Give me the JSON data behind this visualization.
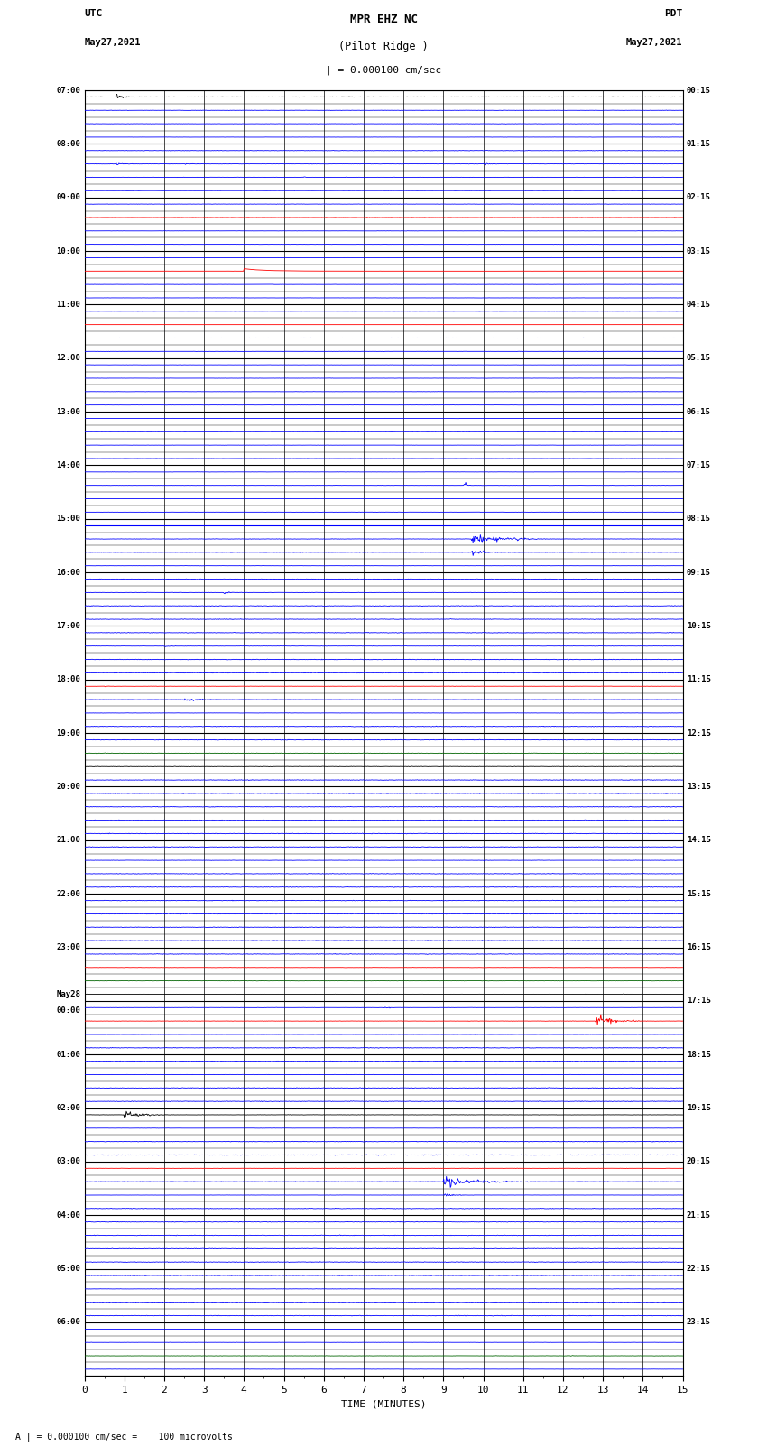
{
  "title_line1": "MPR EHZ NC",
  "title_line2": "(Pilot Ridge )",
  "scale_label": "| = 0.000100 cm/sec",
  "left_label_top": "UTC",
  "left_label_date": "May27,2021",
  "right_label_top": "PDT",
  "right_label_date": "May27,2021",
  "xlabel": "TIME (MINUTES)",
  "footer": "A | = 0.000100 cm/sec =    100 microvolts",
  "x_min": 0,
  "x_max": 15,
  "x_ticks": [
    0,
    1,
    2,
    3,
    4,
    5,
    6,
    7,
    8,
    9,
    10,
    11,
    12,
    13,
    14,
    15
  ],
  "bg_color": "#ffffff",
  "grid_color": "#000000",
  "n_rows": 24,
  "traces_per_row": 4,
  "amplitude_scale": 0.3,
  "utc_labels": [
    "07:00",
    "08:00",
    "09:00",
    "10:00",
    "11:00",
    "12:00",
    "13:00",
    "14:00",
    "15:00",
    "16:00",
    "17:00",
    "18:00",
    "19:00",
    "20:00",
    "21:00",
    "22:00",
    "23:00",
    "May28\n00:00",
    "01:00",
    "02:00",
    "03:00",
    "04:00",
    "05:00",
    "06:00"
  ],
  "pdt_labels": [
    "00:15",
    "01:15",
    "02:15",
    "03:15",
    "04:15",
    "05:15",
    "06:15",
    "07:15",
    "08:15",
    "09:15",
    "10:15",
    "11:15",
    "12:15",
    "13:15",
    "14:15",
    "15:15",
    "16:15",
    "17:15",
    "18:15",
    "19:15",
    "20:15",
    "21:15",
    "22:15",
    "23:15"
  ]
}
